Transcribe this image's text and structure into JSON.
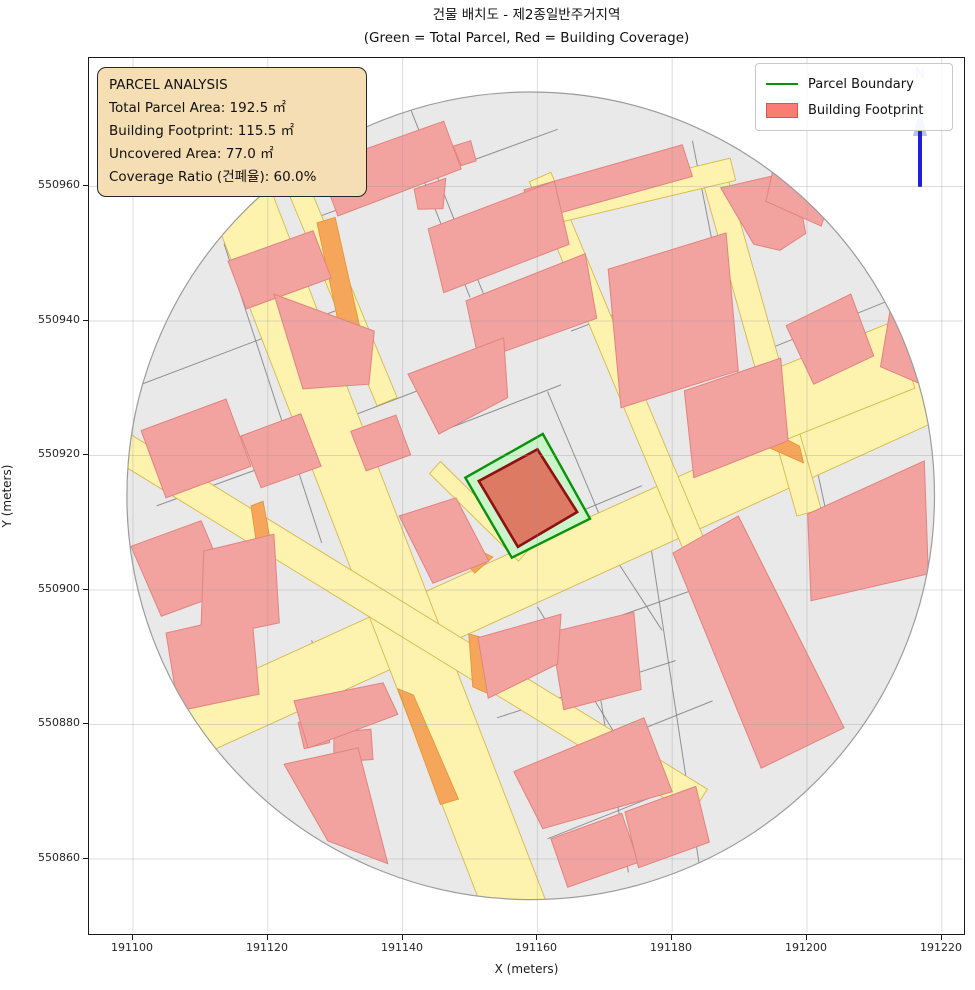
{
  "title": {
    "line1": "건물 배치도 - 제2종일반주거지역",
    "line2": "(Green = Total Parcel, Red = Building Coverage)"
  },
  "axes": {
    "xlabel": "X (meters)",
    "ylabel": "Y (meters)",
    "x_ticks": [
      191100,
      191120,
      191140,
      191160,
      191180,
      191200,
      191220
    ],
    "y_ticks": [
      550860,
      550880,
      550900,
      550920,
      550940,
      550960
    ]
  },
  "legend": {
    "items": [
      {
        "label": "Parcel Boundary",
        "type": "line"
      },
      {
        "label": "Building Footprint",
        "type": "patch"
      }
    ]
  },
  "info_box": {
    "lines": [
      "PARCEL ANALYSIS",
      "Total Parcel Area: 192.5 ㎡",
      "Building Footprint: 115.5 ㎡",
      "Uncovered Area: 77.0 ㎡",
      "Coverage Ratio (건폐율): 60.0%"
    ]
  },
  "north_arrow": {
    "label": "N"
  },
  "chart_data": {
    "type": "map",
    "title": "건물 배치도 - 제2종일반주거지역",
    "subtitle": "(Green = Total Parcel, Red = Building Coverage)",
    "xlabel": "X (meters)",
    "ylabel": "Y (meters)",
    "xlim": [
      191093.5,
      191223.6
    ],
    "ylim": [
      550848.5,
      550979.1
    ],
    "grid": true,
    "legend_position": "upper right",
    "analysis": {
      "total_parcel_area_m2": 192.5,
      "building_footprint_m2": 115.5,
      "uncovered_area_m2": 77.0,
      "coverage_ratio_pct": 60.0
    },
    "colors": {
      "map_bg": "#e9e9e9",
      "map_edge": "#9c9c9c",
      "parcel_line": "#7a7a7a",
      "road_fill": "#fdf3ae",
      "road_edge": "#d8b84a",
      "orange_fill": "#f5a65a",
      "orange_edge": "#e8912f",
      "building_fill": "#f2a29f",
      "building_edge": "#e2837f",
      "parcel_green_fill": "#cbf4cb",
      "parcel_green_edge": "#0a930a",
      "target_building_fill": "#dc7a63",
      "target_building_edge": "#8e1111",
      "grid_line": "#9a9a9a",
      "north_blue": "#1f1fd8",
      "north_light": "#b9c0f2"
    },
    "buffer_circle": {
      "cx": 191159.0,
      "cy": 550914.0,
      "r": 60
    },
    "target_parcel": [
      [
        191149.3,
        550916.7
      ],
      [
        191160.8,
        550923.2
      ],
      [
        191167.8,
        550910.6
      ],
      [
        191156.2,
        550904.8
      ]
    ],
    "target_building": [
      [
        191151.3,
        550916.2
      ],
      [
        191160.0,
        550920.9
      ],
      [
        191165.9,
        550911.6
      ],
      [
        191157.1,
        550906.4
      ]
    ],
    "roads": [
      [
        [
          191088.2,
          550874.6
        ],
        [
          191224.7,
          550936.8
        ],
        [
          191228.2,
          550929.2
        ],
        [
          191091.7,
          550867.0
        ]
      ],
      [
        [
          191117.9,
          550966.1
        ],
        [
          191162.9,
          550849.5
        ],
        [
          191154.3,
          550846.2
        ],
        [
          191109.3,
          550962.7
        ]
      ],
      [
        [
          191125.5,
          550961.6
        ],
        [
          191139.2,
          550928.6
        ],
        [
          191136.2,
          550927.4
        ],
        [
          191122.5,
          550960.4
        ]
      ],
      [
        [
          191162.0,
          550962.1
        ],
        [
          191187.4,
          550901.2
        ],
        [
          191184.2,
          550899.9
        ],
        [
          191158.8,
          550960.7
        ]
      ],
      [
        [
          191187.9,
          550962.5
        ],
        [
          191202.1,
          550912.0
        ],
        [
          191198.5,
          550911.0
        ],
        [
          191184.3,
          550961.5
        ]
      ],
      [
        [
          191163.1,
          550958.1
        ],
        [
          191188.6,
          550964.2
        ],
        [
          191189.4,
          550960.9
        ],
        [
          191163.9,
          550954.8
        ]
      ],
      [
        [
          191145.6,
          550919.1
        ],
        [
          191158.8,
          550906.1
        ],
        [
          191157.2,
          550904.3
        ],
        [
          191144.0,
          550917.3
        ]
      ],
      [
        [
          191099.2,
          550923.4
        ],
        [
          191185.2,
          550870.4
        ],
        [
          191182.8,
          550866.6
        ],
        [
          191096.8,
          550919.6
        ]
      ],
      [
        [
          191193.0,
          550932.0
        ],
        [
          191213.0,
          550940.0
        ],
        [
          191216.0,
          550930.0
        ],
        [
          191196.0,
          550922.0
        ]
      ]
    ],
    "orange_patches": [
      [
        [
          191127.3,
          550954.6
        ],
        [
          191130.0,
          550955.4
        ],
        [
          191134.3,
          550936.2
        ],
        [
          191131.4,
          550935.4
        ]
      ],
      [
        [
          191117.5,
          550912.5
        ],
        [
          191119.3,
          550913.2
        ],
        [
          191120.8,
          550905.1
        ],
        [
          191118.7,
          550904.3
        ]
      ],
      [
        [
          191150.1,
          550906.5
        ],
        [
          191153.4,
          550904.9
        ],
        [
          191150.7,
          550902.5
        ],
        [
          191148.9,
          550904.6
        ]
      ],
      [
        [
          191191.0,
          550925.5
        ],
        [
          191198.9,
          550921.4
        ],
        [
          191199.5,
          550918.9
        ],
        [
          191190.2,
          550923.0
        ]
      ],
      [
        [
          191149.8,
          550893.5
        ],
        [
          191151.9,
          550892.9
        ],
        [
          191152.9,
          550884.5
        ],
        [
          191150.4,
          550885.6
        ]
      ],
      [
        [
          191139.3,
          550885.3
        ],
        [
          191141.6,
          550884.4
        ],
        [
          191148.3,
          550868.9
        ],
        [
          191145.6,
          550868.1
        ]
      ],
      [
        [
          191160.8,
          550954.2
        ],
        [
          191162.3,
          550954.7
        ],
        [
          191162.8,
          550952.7
        ],
        [
          191161.3,
          550952.2
        ]
      ]
    ],
    "buildings": [
      [
        [
          191126.9,
          550966.9
        ],
        [
          191131.6,
          550968.6
        ],
        [
          191132.6,
          550965.3
        ],
        [
          191127.6,
          550963.5
        ]
      ],
      [
        [
          191127.6,
          550963.1
        ],
        [
          191146.1,
          550969.7
        ],
        [
          191148.7,
          550962.6
        ],
        [
          191130.4,
          550955.6
        ]
      ],
      [
        [
          191114.1,
          550948.9
        ],
        [
          191126.7,
          550953.4
        ],
        [
          191129.4,
          550946.4
        ],
        [
          191116.8,
          550941.8
        ]
      ],
      [
        [
          191120.9,
          550944.0
        ],
        [
          191135.8,
          550938.5
        ],
        [
          191135.0,
          550930.6
        ],
        [
          191125.2,
          550929.9
        ]
      ],
      [
        [
          191101.2,
          550923.7
        ],
        [
          191113.8,
          550928.4
        ],
        [
          191117.5,
          550918.4
        ],
        [
          191104.9,
          550913.7
        ]
      ],
      [
        [
          191099.7,
          550906.5
        ],
        [
          191110.1,
          550910.3
        ],
        [
          191114.5,
          550899.9
        ],
        [
          191104.2,
          550896.1
        ]
      ],
      [
        [
          191132.3,
          550923.6
        ],
        [
          191139.0,
          550926.0
        ],
        [
          191141.2,
          550920.1
        ],
        [
          191134.6,
          550917.7
        ]
      ],
      [
        [
          191116.0,
          550922.9
        ],
        [
          191124.9,
          550926.2
        ],
        [
          191127.9,
          550918.4
        ],
        [
          191119.0,
          550915.2
        ]
      ],
      [
        [
          191141.7,
          550959.6
        ],
        [
          191146.4,
          550961.2
        ],
        [
          191146.0,
          550956.7
        ],
        [
          191142.3,
          550956.6
        ]
      ],
      [
        [
          191147.5,
          550966.0
        ],
        [
          191150.1,
          550966.8
        ],
        [
          191150.9,
          550963.8
        ],
        [
          191148.7,
          550963.1
        ]
      ],
      [
        [
          191158.0,
          550959.5
        ],
        [
          191181.5,
          550966.2
        ],
        [
          191183.0,
          550961.5
        ],
        [
          191159.5,
          550955.0
        ]
      ],
      [
        [
          191143.8,
          550953.7
        ],
        [
          191162.5,
          550960.8
        ],
        [
          191164.7,
          550951.4
        ],
        [
          191146.1,
          550944.2
        ]
      ],
      [
        [
          191149.4,
          550943.0
        ],
        [
          191167.1,
          550950.0
        ],
        [
          191168.8,
          550940.4
        ],
        [
          191151.3,
          550934.1
        ]
      ],
      [
        [
          191170.5,
          550947.7
        ],
        [
          191188.0,
          550953.1
        ],
        [
          191189.8,
          550932.6
        ],
        [
          191172.4,
          550927.1
        ]
      ],
      [
        [
          191187.2,
          550959.8
        ],
        [
          191198.1,
          550962.3
        ],
        [
          191199.8,
          550953.0
        ],
        [
          191196.0,
          550950.5
        ],
        [
          191192.1,
          550951.4
        ]
      ],
      [
        [
          191196.9,
          550939.3
        ],
        [
          191206.5,
          550944.0
        ],
        [
          191209.9,
          550934.8
        ],
        [
          191201.0,
          550930.6
        ]
      ],
      [
        [
          191212.4,
          550942.0
        ],
        [
          191220.5,
          550938.9
        ],
        [
          191218.8,
          550929.8
        ],
        [
          191210.9,
          550933.2
        ]
      ],
      [
        [
          191181.8,
          550929.6
        ],
        [
          191196.1,
          550934.5
        ],
        [
          191197.2,
          550922.2
        ],
        [
          191183.2,
          550916.7
        ]
      ],
      [
        [
          191200.1,
          550911.3
        ],
        [
          191217.4,
          550919.2
        ],
        [
          191218.0,
          550902.4
        ],
        [
          191200.6,
          550898.4
        ]
      ],
      [
        [
          191180.1,
          550905.5
        ],
        [
          191189.8,
          550911.0
        ],
        [
          191205.5,
          550879.5
        ],
        [
          191193.2,
          550873.5
        ]
      ],
      [
        [
          191162.0,
          550893.7
        ],
        [
          191174.3,
          550896.7
        ],
        [
          191175.4,
          550885.2
        ],
        [
          191163.9,
          550882.2
        ]
      ],
      [
        [
          191156.5,
          550873.0
        ],
        [
          191175.8,
          550881.0
        ],
        [
          191180.0,
          550870.0
        ],
        [
          191160.8,
          550864.5
        ]
      ],
      [
        [
          191162.0,
          550863.0
        ],
        [
          191172.5,
          550866.8
        ],
        [
          191175.0,
          550859.5
        ],
        [
          191164.5,
          550855.8
        ]
      ],
      [
        [
          191173.0,
          550867.0
        ],
        [
          191183.5,
          550870.8
        ],
        [
          191185.5,
          550862.5
        ],
        [
          191175.0,
          550858.7
        ]
      ],
      [
        [
          191151.2,
          550892.9
        ],
        [
          191163.5,
          550896.4
        ],
        [
          191163.0,
          550889.0
        ],
        [
          191152.7,
          550883.9
        ]
      ],
      [
        [
          191139.5,
          550911.0
        ],
        [
          191147.9,
          550913.7
        ],
        [
          191152.8,
          550904.3
        ],
        [
          191144.5,
          550901.0
        ]
      ],
      [
        [
          191140.8,
          550932.1
        ],
        [
          191155.0,
          550937.5
        ],
        [
          191155.6,
          550928.6
        ],
        [
          191145.4,
          550923.2
        ]
      ],
      [
        [
          191110.5,
          550905.8
        ],
        [
          191120.9,
          550908.3
        ],
        [
          191121.7,
          550895.1
        ],
        [
          191117.8,
          550894.3
        ],
        [
          191118.7,
          550884.5
        ],
        [
          191106.8,
          550882.0
        ],
        [
          191104.9,
          550893.6
        ],
        [
          191110.1,
          550894.8
        ]
      ],
      [
        [
          191124.5,
          550880.3
        ],
        [
          191128.2,
          550881.2
        ],
        [
          191129.2,
          550877.3
        ],
        [
          191125.4,
          550876.4
        ]
      ],
      [
        [
          191129.8,
          550878.8
        ],
        [
          191135.3,
          550879.3
        ],
        [
          191135.6,
          550874.8
        ],
        [
          191129.8,
          550874.4
        ]
      ],
      [
        [
          191123.9,
          550883.5
        ],
        [
          191137.1,
          550886.2
        ],
        [
          191139.3,
          550881.5
        ],
        [
          191126.0,
          550876.5
        ]
      ],
      [
        [
          191122.4,
          550874.1
        ],
        [
          191133.4,
          550876.5
        ],
        [
          191137.8,
          550859.3
        ],
        [
          191128.9,
          550862.7
        ]
      ],
      [
        [
          191195.4,
          550964.5
        ],
        [
          191204.3,
          550960.8
        ],
        [
          191202.1,
          550954.1
        ],
        [
          191193.9,
          550957.8
        ]
      ]
    ],
    "parcel_lines": [
      [
        191101.0,
        550930.5,
        191130.0,
        550941.5
      ],
      [
        191103.5,
        550912.5,
        191131.0,
        550922.5
      ],
      [
        191113.5,
        550951.5,
        191128.0,
        550907.0
      ],
      [
        191142.5,
        550962.5,
        191150.0,
        550943.5
      ],
      [
        191131.0,
        550925.3,
        191144.5,
        550930.5
      ],
      [
        191127.5,
        550955.5,
        191163.0,
        550968.5
      ],
      [
        191165.0,
        550938.5,
        191190.3,
        550948.3
      ],
      [
        191161.5,
        550929.5,
        191169.5,
        550910.5
      ],
      [
        191145.5,
        550923.5,
        191163.5,
        550930.5
      ],
      [
        191163.5,
        550910.5,
        191175.5,
        550915.5
      ],
      [
        191176.0,
        550912.0,
        191184.5,
        550856.0
      ],
      [
        191162.0,
        550892.5,
        191184.5,
        550900.5
      ],
      [
        191163.5,
        550874.5,
        191186.0,
        550883.5
      ],
      [
        191161.5,
        550863.0,
        191181.5,
        550871.0
      ],
      [
        191168.0,
        550892.5,
        191173.5,
        550858.0
      ],
      [
        191126.5,
        550892.5,
        191132.5,
        550874.5
      ],
      [
        191106.5,
        550883.0,
        191123.5,
        550889.0
      ],
      [
        191199.0,
        550929.5,
        191205.0,
        550901.5
      ],
      [
        191194.5,
        550917.5,
        191218.5,
        550927.5
      ],
      [
        191212.5,
        550953.5,
        191219.0,
        550935.5
      ],
      [
        191183.0,
        550966.8,
        191190.0,
        550931.0
      ],
      [
        191160.0,
        550897.5,
        191172.5,
        550877.0
      ],
      [
        191154.0,
        550881.0,
        191180.5,
        550889.5
      ],
      [
        191172.0,
        550904.0,
        191178.5,
        550894.0
      ],
      [
        191193.5,
        550935.5,
        191219.5,
        550946.0
      ],
      [
        191141.0,
        550972.0,
        191152.0,
        550944.0
      ]
    ]
  }
}
